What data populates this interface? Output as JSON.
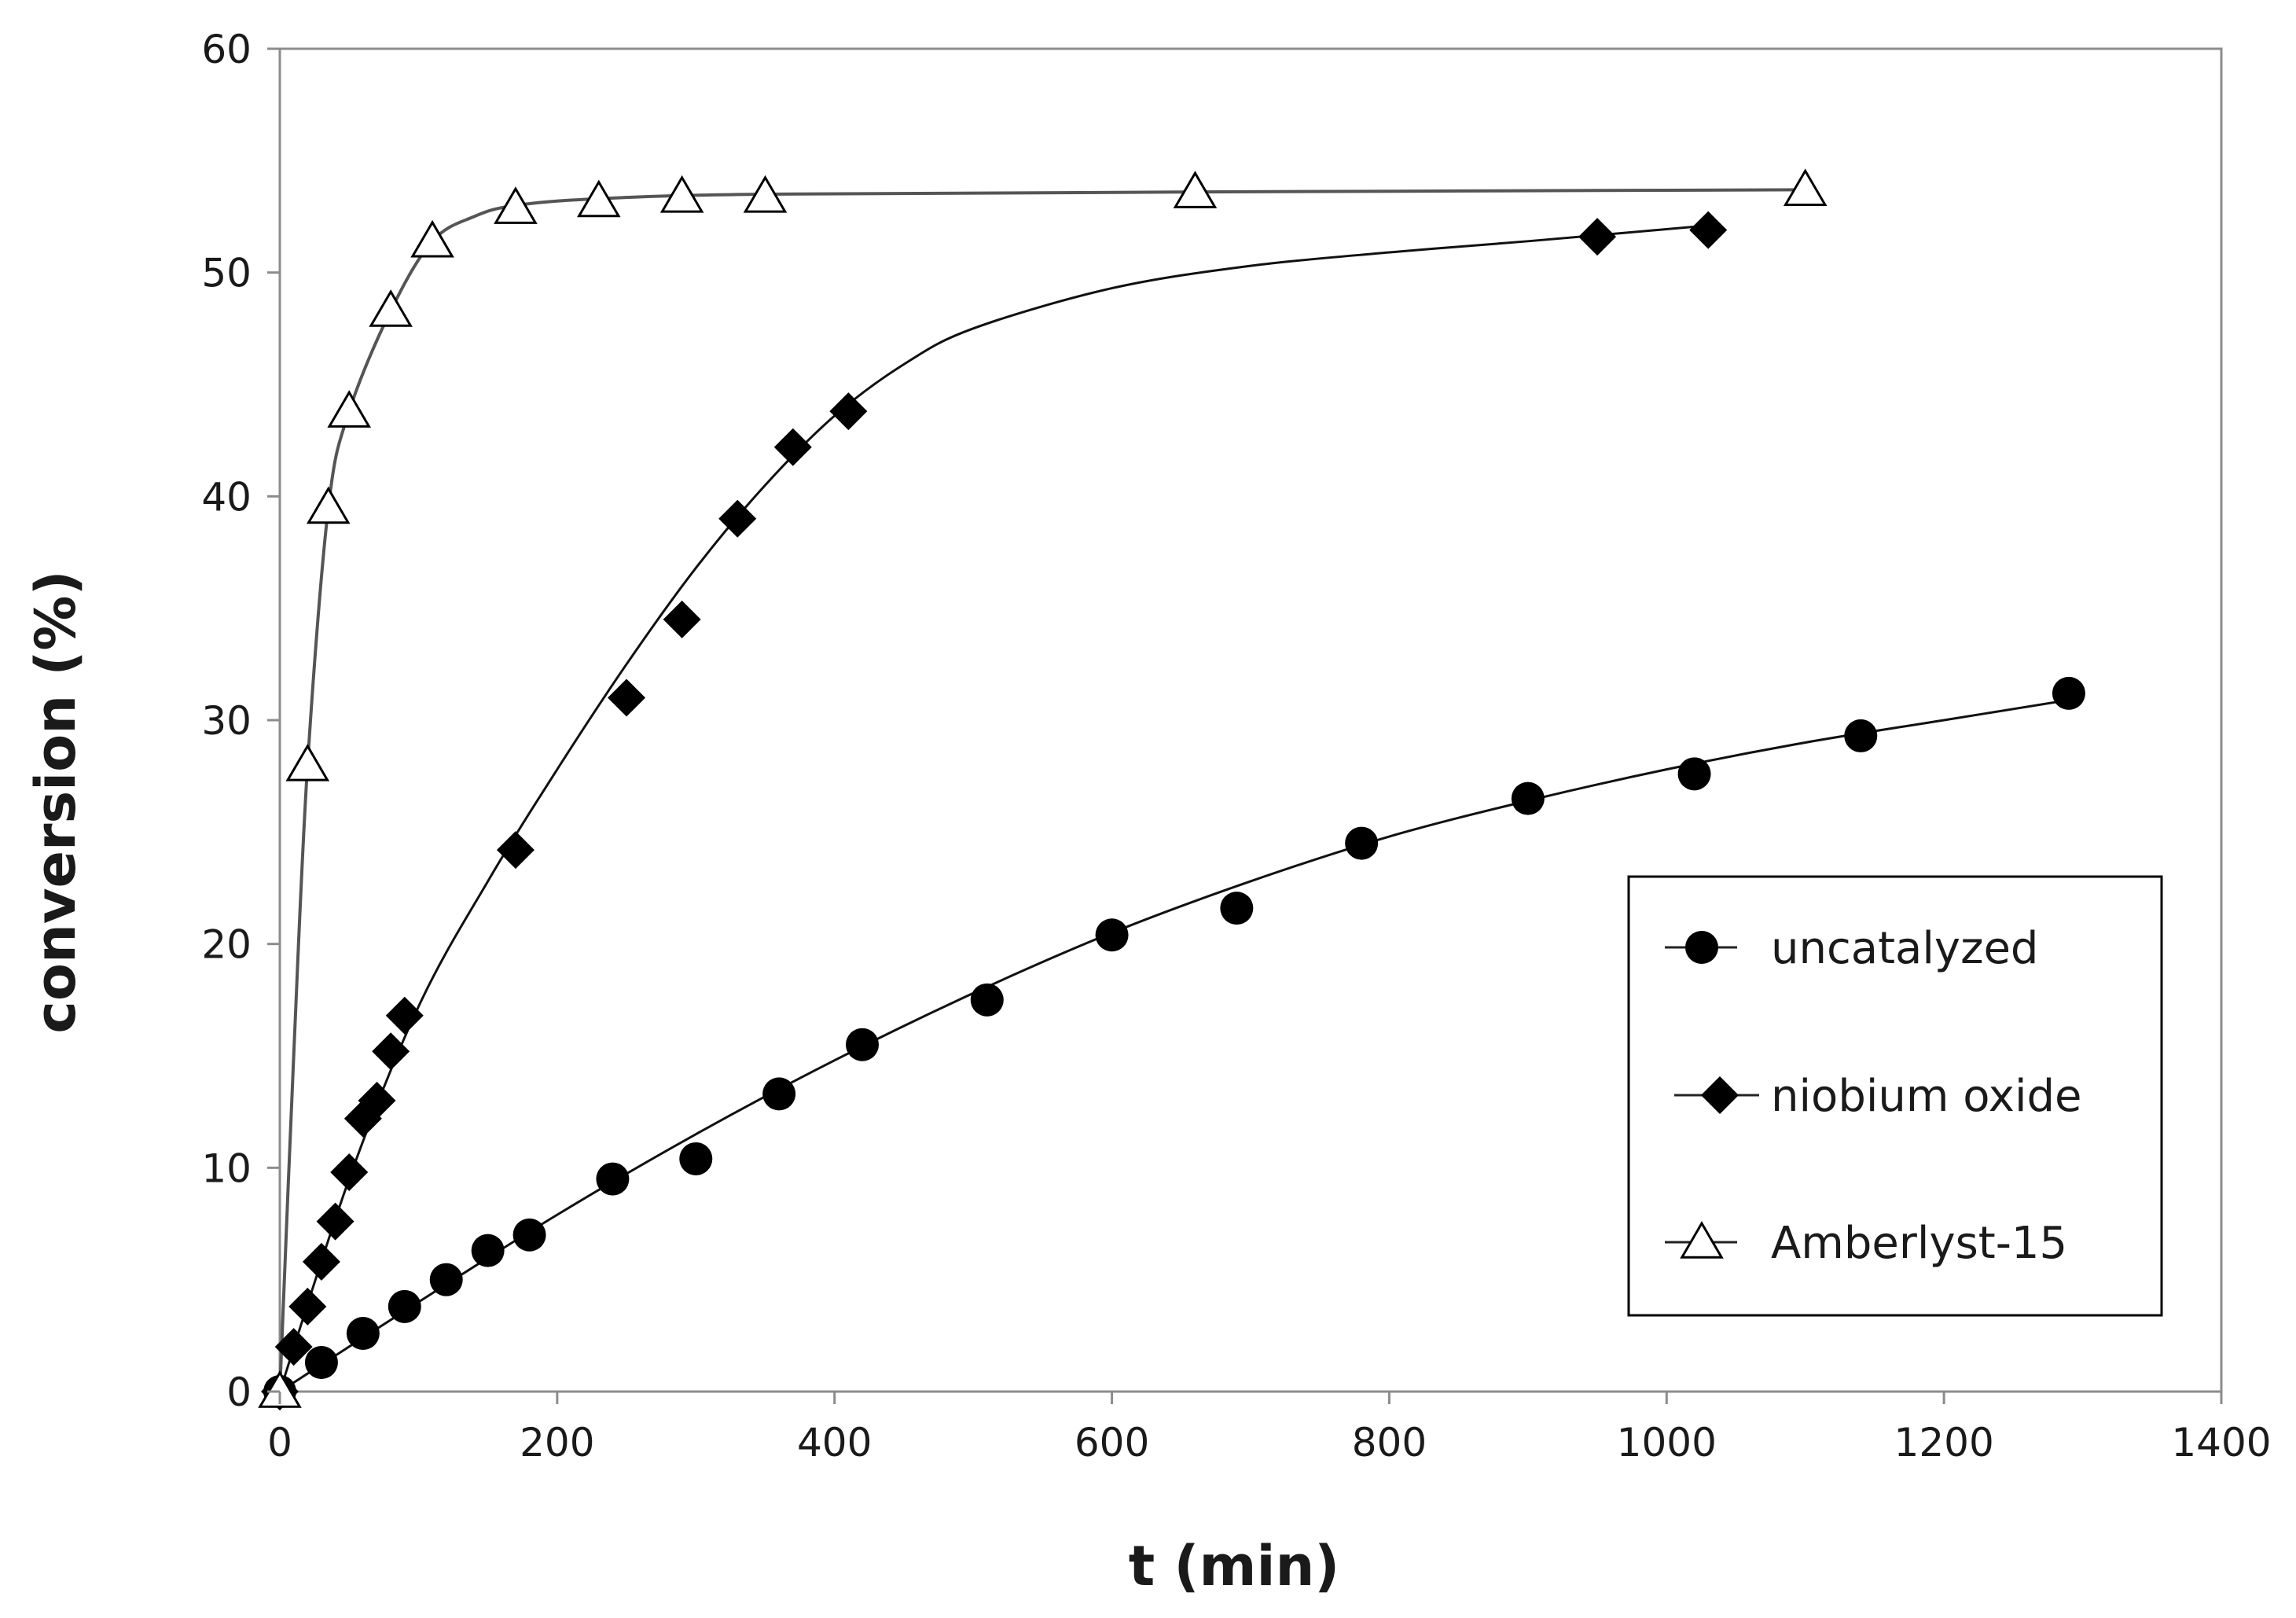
{
  "chart_data": {
    "type": "scatter",
    "title": "",
    "xlabel": "t (min)",
    "ylabel": "conversion (%)",
    "xlim": [
      0,
      1400
    ],
    "ylim": [
      0,
      60
    ],
    "xticks": [
      "0",
      "200",
      "400",
      "600",
      "800",
      "1000",
      "1200",
      "1400"
    ],
    "yticks": [
      "0",
      "10",
      "20",
      "30",
      "40",
      "50",
      "60"
    ],
    "grid": false,
    "legend_position": "lower-right",
    "series": [
      {
        "name": "uncatalyzed",
        "marker": "circle-filled",
        "color": "#000000",
        "points": [
          [
            0,
            0
          ],
          [
            30,
            1.3
          ],
          [
            60,
            2.6
          ],
          [
            90,
            3.8
          ],
          [
            120,
            5.0
          ],
          [
            150,
            6.3
          ],
          [
            180,
            7.0
          ],
          [
            240,
            9.5
          ],
          [
            300,
            10.4
          ],
          [
            360,
            13.3
          ],
          [
            420,
            15.5
          ],
          [
            510,
            17.5
          ],
          [
            600,
            20.4
          ],
          [
            690,
            21.6
          ],
          [
            780,
            24.5
          ],
          [
            900,
            26.5
          ],
          [
            1020,
            27.6
          ],
          [
            1140,
            29.3
          ],
          [
            1290,
            31.2
          ]
        ],
        "curve": [
          [
            0,
            0
          ],
          [
            100,
            4.0
          ],
          [
            200,
            7.9
          ],
          [
            300,
            11.5
          ],
          [
            400,
            14.8
          ],
          [
            500,
            17.8
          ],
          [
            600,
            20.5
          ],
          [
            700,
            22.8
          ],
          [
            800,
            24.8
          ],
          [
            900,
            26.4
          ],
          [
            1000,
            27.8
          ],
          [
            1100,
            29.0
          ],
          [
            1200,
            30.0
          ],
          [
            1290,
            30.9
          ]
        ]
      },
      {
        "name": "niobium oxide",
        "marker": "diamond-filled",
        "color": "#000000",
        "points": [
          [
            0,
            0
          ],
          [
            10,
            2.0
          ],
          [
            20,
            3.8
          ],
          [
            30,
            5.8
          ],
          [
            40,
            7.6
          ],
          [
            50,
            9.8
          ],
          [
            60,
            12.2
          ],
          [
            70,
            13.0
          ],
          [
            80,
            15.2
          ],
          [
            90,
            16.8
          ],
          [
            170,
            24.2
          ],
          [
            250,
            31.0
          ],
          [
            290,
            34.5
          ],
          [
            330,
            39.0
          ],
          [
            370,
            42.2
          ],
          [
            410,
            43.8
          ],
          [
            950,
            51.6
          ],
          [
            1030,
            51.9
          ]
        ],
        "curve": [
          [
            0,
            0
          ],
          [
            50,
            9.5
          ],
          [
            100,
            17.2
          ],
          [
            150,
            22.8
          ],
          [
            200,
            27.8
          ],
          [
            250,
            32.5
          ],
          [
            300,
            36.8
          ],
          [
            350,
            40.5
          ],
          [
            400,
            43.6
          ],
          [
            450,
            45.9
          ],
          [
            500,
            47.5
          ],
          [
            600,
            49.3
          ],
          [
            700,
            50.3
          ],
          [
            800,
            50.9
          ],
          [
            900,
            51.4
          ],
          [
            1030,
            52.1
          ]
        ]
      },
      {
        "name": "Amberlyst-15",
        "marker": "triangle-open",
        "color": "#000000",
        "points": [
          [
            0,
            0
          ],
          [
            20,
            28.0
          ],
          [
            35,
            39.5
          ],
          [
            50,
            43.8
          ],
          [
            80,
            48.3
          ],
          [
            110,
            51.4
          ],
          [
            170,
            52.9
          ],
          [
            230,
            53.2
          ],
          [
            290,
            53.4
          ],
          [
            350,
            53.4
          ],
          [
            660,
            53.6
          ],
          [
            1100,
            53.7
          ]
        ],
        "curve": [
          [
            0,
            0
          ],
          [
            10,
            15.0
          ],
          [
            20,
            28.0
          ],
          [
            35,
            39.5
          ],
          [
            50,
            43.8
          ],
          [
            80,
            48.3
          ],
          [
            110,
            51.4
          ],
          [
            140,
            52.5
          ],
          [
            170,
            53.0
          ],
          [
            230,
            53.3
          ],
          [
            350,
            53.5
          ],
          [
            660,
            53.6
          ],
          [
            1100,
            53.7
          ]
        ]
      }
    ]
  }
}
